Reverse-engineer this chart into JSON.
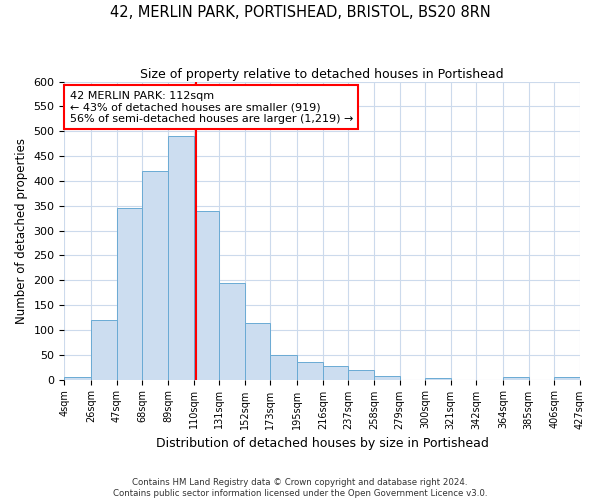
{
  "title": "42, MERLIN PARK, PORTISHEAD, BRISTOL, BS20 8RN",
  "subtitle": "Size of property relative to detached houses in Portishead",
  "xlabel": "Distribution of detached houses by size in Portishead",
  "ylabel": "Number of detached properties",
  "bin_edges": [
    4,
    26,
    47,
    68,
    89,
    110,
    131,
    152,
    173,
    195,
    216,
    237,
    258,
    279,
    300,
    321,
    342,
    364,
    385,
    406,
    427
  ],
  "bin_heights": [
    5,
    120,
    345,
    420,
    490,
    340,
    195,
    113,
    50,
    35,
    27,
    20,
    8,
    0,
    3,
    0,
    0,
    5,
    0,
    5
  ],
  "bar_color": "#ccddf0",
  "bar_edgecolor": "#6aaad4",
  "property_line_x": 112,
  "property_line_color": "red",
  "annotation_title": "42 MERLIN PARK: 112sqm",
  "annotation_line1": "← 43% of detached houses are smaller (919)",
  "annotation_line2": "56% of semi-detached houses are larger (1,219) →",
  "annotation_box_edgecolor": "red",
  "ylim": [
    0,
    600
  ],
  "yticks": [
    0,
    50,
    100,
    150,
    200,
    250,
    300,
    350,
    400,
    450,
    500,
    550,
    600
  ],
  "tick_labels": [
    "4sqm",
    "26sqm",
    "47sqm",
    "68sqm",
    "89sqm",
    "110sqm",
    "131sqm",
    "152sqm",
    "173sqm",
    "195sqm",
    "216sqm",
    "237sqm",
    "258sqm",
    "279sqm",
    "300sqm",
    "321sqm",
    "342sqm",
    "364sqm",
    "385sqm",
    "406sqm",
    "427sqm"
  ],
  "footer_line1": "Contains HM Land Registry data © Crown copyright and database right 2024.",
  "footer_line2": "Contains public sector information licensed under the Open Government Licence v3.0.",
  "background_color": "#ffffff",
  "grid_color": "#ccdaec"
}
